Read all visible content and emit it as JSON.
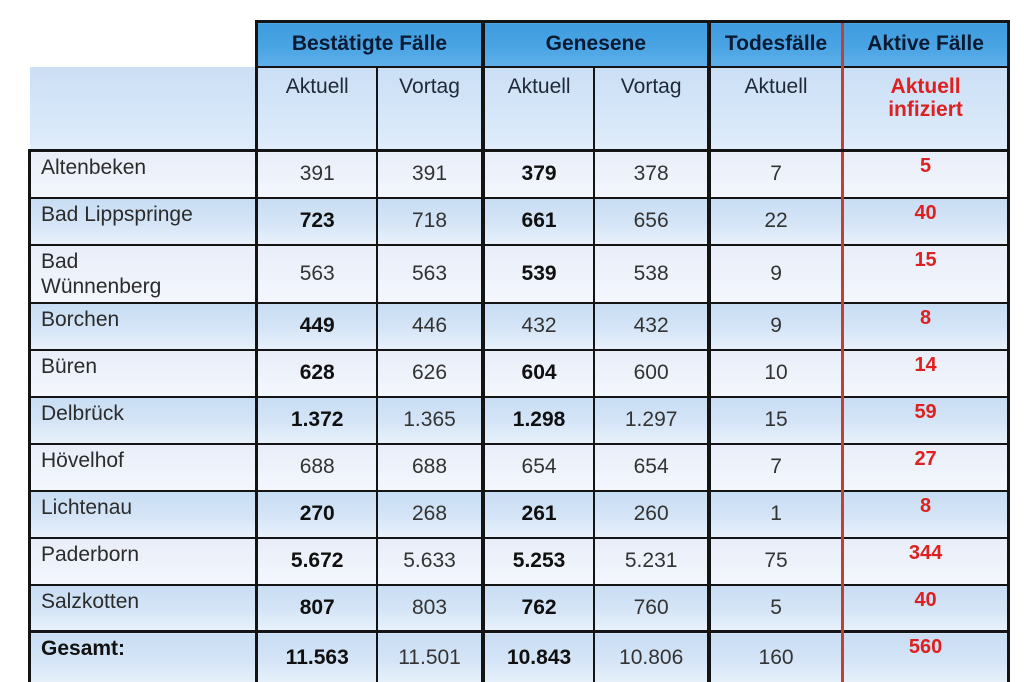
{
  "colors": {
    "header_blue": "#4aa4e4",
    "subheader_blue": "#cfe3f7",
    "row_light": "#e9eef9",
    "row_blue": "#c9def4",
    "accent_red": "#dd2020",
    "divider_red_line": "#bf4136",
    "border_black": "#141414",
    "header_text": "#0a1a33"
  },
  "chart_data": {
    "type": "table",
    "column_groups": [
      {
        "label": "Bestätigte Fälle",
        "span": 2
      },
      {
        "label": "Genesene",
        "span": 2
      },
      {
        "label": "Todesfälle",
        "span": 1
      },
      {
        "label": "Aktive Fälle",
        "span": 1
      }
    ],
    "subheaders": {
      "best_akt": "Aktuell",
      "best_vor": "Vortag",
      "gen_akt": "Aktuell",
      "gen_vor": "Vortag",
      "todes_akt": "Aktuell",
      "aktive": "Aktuell\ninfiziert"
    },
    "rows": [
      {
        "name": "Altenbeken",
        "cells": [
          "391",
          "391",
          "379",
          "378",
          "7",
          "5"
        ],
        "bold": [
          false,
          false,
          true,
          false,
          false,
          true
        ],
        "shade": "light",
        "name_bold": false,
        "total": false
      },
      {
        "name": "Bad Lippspringe",
        "cells": [
          "723",
          "718",
          "661",
          "656",
          "22",
          "40"
        ],
        "bold": [
          true,
          false,
          true,
          false,
          false,
          true
        ],
        "shade": "blue",
        "name_bold": false,
        "total": false
      },
      {
        "name": "Bad\nWünnenberg",
        "cells": [
          "563",
          "563",
          "539",
          "538",
          "9",
          "15"
        ],
        "bold": [
          false,
          false,
          true,
          false,
          false,
          true
        ],
        "shade": "light",
        "name_bold": false,
        "total": false
      },
      {
        "name": "Borchen",
        "cells": [
          "449",
          "446",
          "432",
          "432",
          "9",
          "8"
        ],
        "bold": [
          true,
          false,
          false,
          false,
          false,
          true
        ],
        "shade": "blue",
        "name_bold": false,
        "total": false
      },
      {
        "name": "Büren",
        "cells": [
          "628",
          "626",
          "604",
          "600",
          "10",
          "14"
        ],
        "bold": [
          true,
          false,
          true,
          false,
          false,
          true
        ],
        "shade": "light",
        "name_bold": false,
        "total": false
      },
      {
        "name": "Delbrück",
        "cells": [
          "1.372",
          "1.365",
          "1.298",
          "1.297",
          "15",
          "59"
        ],
        "bold": [
          true,
          false,
          true,
          false,
          false,
          true
        ],
        "shade": "blue",
        "name_bold": false,
        "total": false
      },
      {
        "name": "Hövelhof",
        "cells": [
          "688",
          "688",
          "654",
          "654",
          "7",
          "27"
        ],
        "bold": [
          false,
          false,
          false,
          false,
          false,
          true
        ],
        "shade": "light",
        "name_bold": false,
        "total": false
      },
      {
        "name": "Lichtenau",
        "cells": [
          "270",
          "268",
          "261",
          "260",
          "1",
          "8"
        ],
        "bold": [
          true,
          false,
          true,
          false,
          false,
          true
        ],
        "shade": "blue",
        "name_bold": false,
        "total": false
      },
      {
        "name": "Paderborn",
        "cells": [
          "5.672",
          "5.633",
          "5.253",
          "5.231",
          "75",
          "344"
        ],
        "bold": [
          true,
          false,
          true,
          false,
          false,
          true
        ],
        "shade": "light",
        "name_bold": false,
        "total": false
      },
      {
        "name": "Salzkotten",
        "cells": [
          "807",
          "803",
          "762",
          "760",
          "5",
          "40"
        ],
        "bold": [
          true,
          false,
          true,
          false,
          false,
          true
        ],
        "shade": "blue",
        "name_bold": false,
        "total": false
      },
      {
        "name": "Gesamt:",
        "cells": [
          "11.563",
          "11.501",
          "10.843",
          "10.806",
          "160",
          "560"
        ],
        "bold": [
          true,
          false,
          true,
          false,
          false,
          true
        ],
        "shade": "blue",
        "name_bold": true,
        "total": true
      }
    ]
  }
}
